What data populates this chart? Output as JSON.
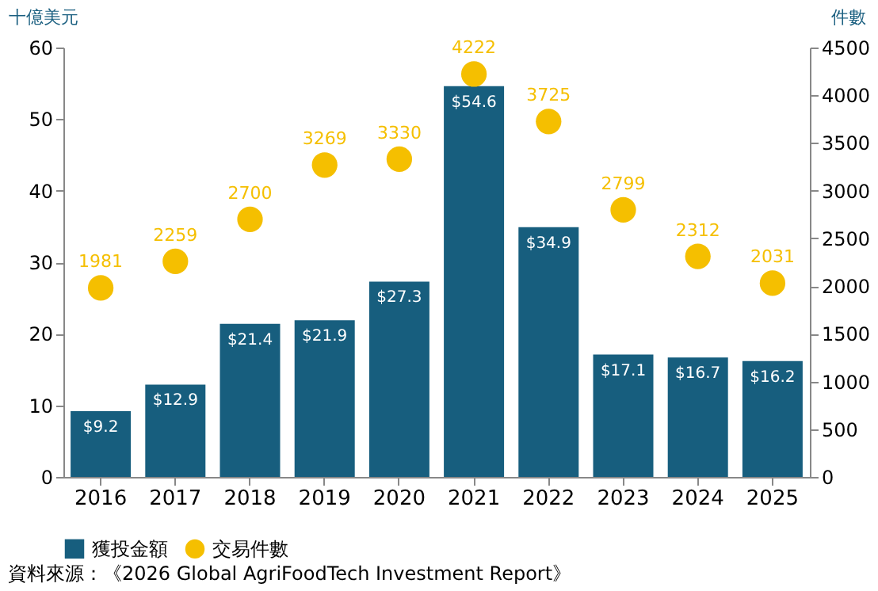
{
  "chart_data": {
    "type": "bar",
    "ylabel": "十億美元",
    "y2label": "件數",
    "categories": [
      "2016",
      "2017",
      "2018",
      "2019",
      "2020",
      "2021",
      "2022",
      "2023",
      "2024",
      "2025"
    ],
    "series": [
      {
        "name": "獲投金額",
        "type": "bar",
        "color": "#175e7e",
        "values": [
          9.2,
          12.9,
          21.4,
          21.9,
          27.3,
          54.6,
          34.9,
          17.1,
          16.7,
          16.2
        ],
        "value_labels": [
          "$9.2",
          "$12.9",
          "$21.4",
          "$21.9",
          "$27.3",
          "$54.6",
          "$34.9",
          "$17.1",
          "$16.7",
          "$16.2"
        ]
      },
      {
        "name": "交易件數",
        "type": "scatter",
        "axis": "y2",
        "marker": "circle",
        "color": "#f5bf00",
        "values": [
          1981,
          2259,
          2700,
          3269,
          3330,
          4222,
          3725,
          2799,
          2312,
          2031
        ],
        "value_labels": [
          "1981",
          "2259",
          "2700",
          "3269",
          "3330",
          "4222",
          "3725",
          "2799",
          "2312",
          "2031"
        ]
      }
    ],
    "ylim": [
      0,
      60
    ],
    "yticks": [
      0,
      10,
      20,
      30,
      40,
      50,
      60
    ],
    "y2lim": [
      0,
      4500
    ],
    "y2ticks": [
      0,
      500,
      1000,
      1500,
      2000,
      2500,
      3000,
      3500,
      4000,
      4500
    ],
    "grid": false,
    "legend": "bottom",
    "annotations": [
      "資料來源：《2026 Global AgriFoodTech Investment Report》"
    ]
  }
}
